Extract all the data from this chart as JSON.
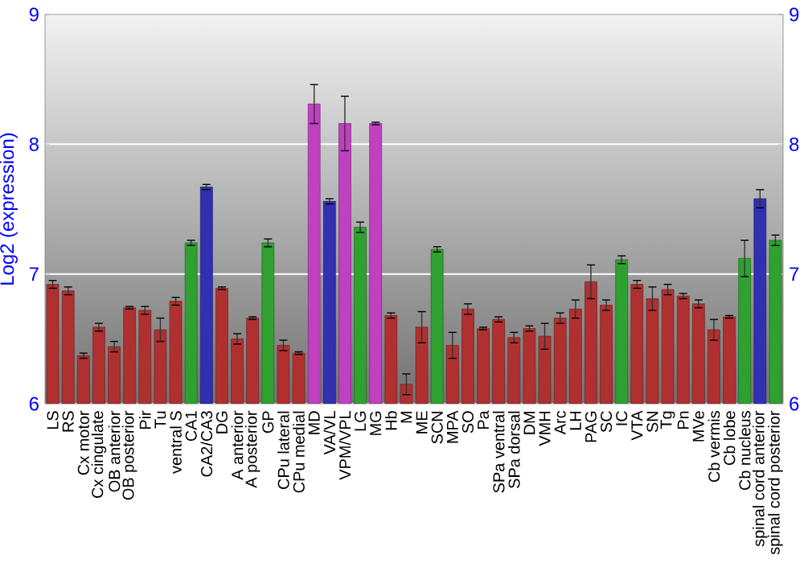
{
  "chart_data": {
    "type": "bar",
    "ylabel": "Log2 (expression)",
    "categories": [
      "LS",
      "RS",
      "Cx motor",
      "Cx cingulate",
      "OB anterior",
      "OB posterior",
      "Pir",
      "Tu",
      "ventral S",
      "CA1",
      "CA2/CA3",
      "DG",
      "A anterior",
      "A posterior",
      "GP",
      "CPu lateral",
      "CPu medial",
      "MD",
      "VA/VL",
      "VPM/VPL",
      "LG",
      "MG",
      "Hb",
      "M",
      "ME",
      "SCN",
      "MPA",
      "SO",
      "Pa",
      "SPa ventral",
      "SPa dorsal",
      "DM",
      "VMH",
      "Arc",
      "LH",
      "PAG",
      "SC",
      "IC",
      "VTA",
      "SN",
      "Tg",
      "Pn",
      "MVe",
      "Cb vermis",
      "Cb lobe",
      "Cb nucleus",
      "spinal cord anterior",
      "spinal cord posterior"
    ],
    "values": [
      6.92,
      6.87,
      6.37,
      6.59,
      6.44,
      6.74,
      6.72,
      6.57,
      6.79,
      7.24,
      7.67,
      6.89,
      6.5,
      6.66,
      7.24,
      6.45,
      6.39,
      8.31,
      7.56,
      8.16,
      7.36,
      8.16,
      6.68,
      6.15,
      6.59,
      7.19,
      6.45,
      6.73,
      6.58,
      6.65,
      6.51,
      6.58,
      6.52,
      6.66,
      6.73,
      6.94,
      6.76,
      7.11,
      6.92,
      6.81,
      6.88,
      6.83,
      6.77,
      6.57,
      6.67,
      7.12,
      7.58,
      7.26
    ],
    "errors": [
      0.03,
      0.03,
      0.02,
      0.03,
      0.04,
      0.01,
      0.03,
      0.09,
      0.03,
      0.02,
      0.02,
      0.01,
      0.04,
      0.01,
      0.03,
      0.04,
      0.01,
      0.15,
      0.02,
      0.21,
      0.04,
      0.01,
      0.02,
      0.08,
      0.12,
      0.02,
      0.1,
      0.04,
      0.01,
      0.02,
      0.04,
      0.02,
      0.1,
      0.04,
      0.07,
      0.13,
      0.04,
      0.03,
      0.03,
      0.09,
      0.04,
      0.02,
      0.03,
      0.08,
      0.01,
      0.14,
      0.07,
      0.04
    ],
    "colors": [
      "#b03030",
      "#b03030",
      "#b03030",
      "#b03030",
      "#b03030",
      "#b03030",
      "#b03030",
      "#b03030",
      "#b03030",
      "#30a030",
      "#3030b0",
      "#b03030",
      "#b03030",
      "#b03030",
      "#30a030",
      "#b03030",
      "#b03030",
      "#c040c0",
      "#3030b0",
      "#c040c0",
      "#30a030",
      "#c040c0",
      "#b03030",
      "#b03030",
      "#b03030",
      "#30a030",
      "#b03030",
      "#b03030",
      "#b03030",
      "#b03030",
      "#b03030",
      "#b03030",
      "#b03030",
      "#b03030",
      "#b03030",
      "#b03030",
      "#b03030",
      "#30a030",
      "#b03030",
      "#b03030",
      "#b03030",
      "#b03030",
      "#b03030",
      "#b03030",
      "#b03030",
      "#30a030",
      "#3030b0",
      "#30a030"
    ],
    "ylim": [
      6,
      9
    ],
    "yticks": [
      6,
      7,
      8,
      9
    ],
    "y2lim": [
      6,
      9
    ],
    "y2ticks": [
      6,
      7,
      8,
      9
    ],
    "grid": "y"
  }
}
